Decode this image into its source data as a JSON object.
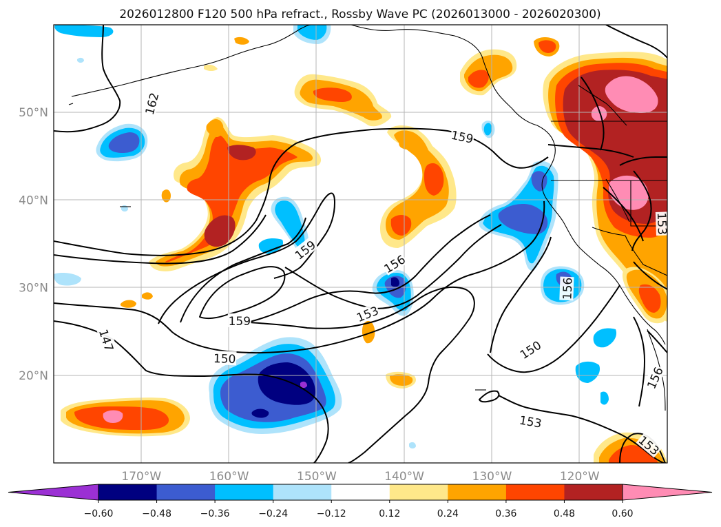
{
  "title": "2026012800 F120 500 hPa refract., Rossby Wave PC (2026013000 - 2026020300)",
  "longitudes": [
    {
      "lon": -170,
      "label": "170°W"
    },
    {
      "lon": -160,
      "label": "160°W"
    },
    {
      "lon": -150,
      "label": "150°W"
    },
    {
      "lon": -140,
      "label": "140°W"
    },
    {
      "lon": -130,
      "label": "130°W"
    },
    {
      "lon": -120,
      "label": "120°W"
    }
  ],
  "latitudes": [
    {
      "lat": 50,
      "label": "50°N"
    },
    {
      "lat": 40,
      "label": "40°N"
    },
    {
      "lat": 30,
      "label": "30°N"
    },
    {
      "lat": 20,
      "label": "20°N"
    }
  ],
  "extent": {
    "lon_min": -180,
    "lon_max": -110,
    "lat_min": 10,
    "lat_max": 60
  },
  "colorbar": {
    "levels": [
      -0.6,
      -0.48,
      -0.36,
      -0.24,
      -0.12,
      0.12,
      0.24,
      0.36,
      0.48,
      0.6
    ],
    "labels": [
      "−0.60",
      "−0.48",
      "−0.36",
      "−0.24",
      "−0.12",
      "0.12",
      "0.24",
      "0.36",
      "0.48",
      "0.60"
    ],
    "colors": [
      "#9b30d4",
      "#000080",
      "#3c5cd0",
      "#00bfff",
      "#aee3fb",
      "#ffffff",
      "#ffe88a",
      "#ffa400",
      "#ff4500",
      "#b22222",
      "#ff8cb4"
    ]
  },
  "contour_labels": [
    {
      "text": "162",
      "lon": -168.8,
      "lat": 51.0,
      "angle": -75
    },
    {
      "text": "159",
      "lon": -133.4,
      "lat": 47.2,
      "angle": 12
    },
    {
      "text": "159",
      "lon": -151.3,
      "lat": 34.3,
      "angle": -38
    },
    {
      "text": "156",
      "lon": -141.1,
      "lat": 32.7,
      "angle": -32
    },
    {
      "text": "159",
      "lon": -158.8,
      "lat": 26.2,
      "angle": 0
    },
    {
      "text": "153",
      "lon": -144.2,
      "lat": 27.0,
      "angle": -22
    },
    {
      "text": "156",
      "lon": -121.4,
      "lat": 29.9,
      "angle": -88
    },
    {
      "text": "147",
      "lon": -174.0,
      "lat": 24.0,
      "angle": 72
    },
    {
      "text": "150",
      "lon": -160.5,
      "lat": 21.9,
      "angle": 2
    },
    {
      "text": "150",
      "lon": -125.6,
      "lat": 22.9,
      "angle": -33
    },
    {
      "text": "153",
      "lon": -125.6,
      "lat": 14.7,
      "angle": 10
    },
    {
      "text": "153",
      "lon": -112.1,
      "lat": 12.0,
      "angle": 40
    },
    {
      "text": "156",
      "lon": -111.4,
      "lat": 19.7,
      "angle": -66
    },
    {
      "text": "153",
      "lon": -110.6,
      "lat": 37.3,
      "angle": 88
    }
  ]
}
